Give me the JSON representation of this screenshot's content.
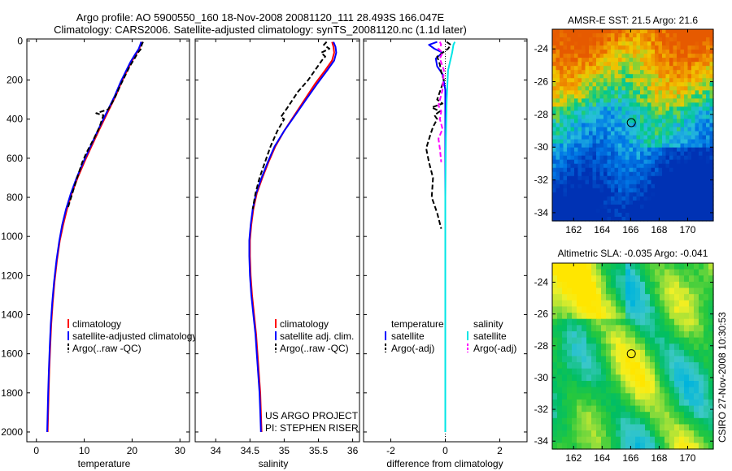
{
  "header": {
    "title_line1": "Argo profile: AO 5900550_160 18-Nov-2008 20081120_111 28.493S 166.047E",
    "title_line2": "Climatology: CARS2006. Satellite-adjusted climatology: synTS_20081120.nc (1.1d later)"
  },
  "credit": {
    "line1": "US ARGO PROJECT",
    "line2": "PI: STEPHEN RISER"
  },
  "side_stamp": "CSIRO 27-Nov-2008 10:30:53",
  "colors": {
    "red": "#ff0000",
    "blue": "#0000ff",
    "black": "#000000",
    "cyan": "#00e5e5",
    "magenta": "#ff00ff"
  },
  "chart_data": [
    {
      "id": "temperature",
      "type": "line",
      "xlabel": "temperature",
      "ylabel": "",
      "xlim": [
        -2,
        32
      ],
      "ylim": [
        2050,
        -10
      ],
      "xticks": [
        0,
        10,
        20,
        30
      ],
      "yticks": [
        0,
        200,
        400,
        600,
        800,
        1000,
        1200,
        1400,
        1600,
        1800,
        2000
      ],
      "legend": [
        "climatology",
        "satellite-adjusted climatology",
        "Argo(..raw -QC)"
      ],
      "series": [
        {
          "name": "climatology",
          "color": "#ff0000",
          "style": "solid",
          "points": [
            [
              22.0,
              5
            ],
            [
              21.8,
              20
            ],
            [
              21.5,
              40
            ],
            [
              20.8,
              70
            ],
            [
              19.8,
              110
            ],
            [
              18.8,
              160
            ],
            [
              17.8,
              210
            ],
            [
              16.6,
              280
            ],
            [
              15.0,
              360
            ],
            [
              13.2,
              450
            ],
            [
              11.5,
              540
            ],
            [
              10.0,
              620
            ],
            [
              8.6,
              700
            ],
            [
              7.4,
              780
            ],
            [
              6.4,
              860
            ],
            [
              5.6,
              940
            ],
            [
              4.9,
              1020
            ],
            [
              4.3,
              1120
            ],
            [
              3.8,
              1230
            ],
            [
              3.4,
              1340
            ],
            [
              3.1,
              1450
            ],
            [
              2.9,
              1560
            ],
            [
              2.7,
              1680
            ],
            [
              2.55,
              1800
            ],
            [
              2.45,
              1900
            ],
            [
              2.35,
              2000
            ]
          ]
        },
        {
          "name": "satellite-adjusted climatology",
          "color": "#0000ff",
          "style": "solid",
          "points": [
            [
              21.9,
              5
            ],
            [
              21.7,
              20
            ],
            [
              21.4,
              40
            ],
            [
              20.6,
              70
            ],
            [
              19.6,
              110
            ],
            [
              18.6,
              160
            ],
            [
              17.6,
              210
            ],
            [
              16.4,
              280
            ],
            [
              14.8,
              360
            ],
            [
              13.0,
              450
            ],
            [
              11.3,
              540
            ],
            [
              9.8,
              620
            ],
            [
              8.4,
              700
            ],
            [
              7.2,
              780
            ],
            [
              6.2,
              860
            ],
            [
              5.4,
              940
            ],
            [
              4.8,
              1020
            ],
            [
              4.2,
              1120
            ],
            [
              3.7,
              1230
            ],
            [
              3.3,
              1340
            ],
            [
              3.0,
              1450
            ],
            [
              2.8,
              1560
            ],
            [
              2.6,
              1680
            ],
            [
              2.45,
              1800
            ],
            [
              2.35,
              1900
            ],
            [
              2.25,
              2000
            ]
          ]
        },
        {
          "name": "Argo(..raw -QC)",
          "color": "#000000",
          "style": "dash",
          "points": [
            [
              22.3,
              5
            ],
            [
              22.0,
              20
            ],
            [
              21.9,
              40
            ],
            [
              21.2,
              60
            ],
            [
              20.5,
              90
            ],
            [
              19.5,
              130
            ],
            [
              18.5,
              180
            ],
            [
              17.5,
              230
            ],
            [
              16.2,
              300
            ],
            [
              15.0,
              350
            ],
            [
              12.5,
              370
            ],
            [
              14.0,
              380
            ],
            [
              13.2,
              440
            ],
            [
              12.0,
              500
            ],
            [
              10.5,
              570
            ],
            [
              9.6,
              620
            ],
            [
              8.5,
              700
            ],
            [
              7.5,
              780
            ],
            [
              6.5,
              860
            ]
          ]
        }
      ]
    },
    {
      "id": "salinity",
      "type": "line",
      "xlabel": "salinity",
      "ylabel": "",
      "xlim": [
        33.7,
        36.1
      ],
      "ylim": [
        2050,
        -10
      ],
      "xticks": [
        34,
        34.5,
        35,
        35.5,
        36
      ],
      "yticks": [
        0,
        200,
        400,
        600,
        800,
        1000,
        1200,
        1400,
        1600,
        1800,
        2000
      ],
      "legend": [
        "climatology",
        "satellite adj. clim.",
        "Argo(..raw -QC)"
      ],
      "series": [
        {
          "name": "climatology",
          "color": "#ff0000",
          "style": "solid",
          "points": [
            [
              35.7,
              5
            ],
            [
              35.72,
              30
            ],
            [
              35.73,
              60
            ],
            [
              35.7,
              100
            ],
            [
              35.6,
              150
            ],
            [
              35.45,
              220
            ],
            [
              35.3,
              300
            ],
            [
              35.15,
              380
            ],
            [
              35.0,
              460
            ],
            [
              34.87,
              540
            ],
            [
              34.77,
              620
            ],
            [
              34.68,
              700
            ],
            [
              34.6,
              780
            ],
            [
              34.55,
              860
            ],
            [
              34.52,
              940
            ],
            [
              34.5,
              1020
            ],
            [
              34.5,
              1100
            ],
            [
              34.51,
              1200
            ],
            [
              34.53,
              1300
            ],
            [
              34.56,
              1400
            ],
            [
              34.59,
              1500
            ],
            [
              34.61,
              1600
            ],
            [
              34.63,
              1700
            ],
            [
              34.65,
              1800
            ],
            [
              34.66,
              1900
            ],
            [
              34.67,
              2000
            ]
          ]
        },
        {
          "name": "satellite adj. clim.",
          "color": "#0000ff",
          "style": "solid",
          "points": [
            [
              35.72,
              5
            ],
            [
              35.75,
              30
            ],
            [
              35.76,
              60
            ],
            [
              35.73,
              100
            ],
            [
              35.63,
              150
            ],
            [
              35.48,
              220
            ],
            [
              35.32,
              300
            ],
            [
              35.16,
              380
            ],
            [
              35.0,
              460
            ],
            [
              34.86,
              540
            ],
            [
              34.76,
              620
            ],
            [
              34.67,
              700
            ],
            [
              34.59,
              780
            ],
            [
              34.54,
              860
            ],
            [
              34.51,
              940
            ],
            [
              34.49,
              1020
            ],
            [
              34.49,
              1100
            ],
            [
              34.5,
              1200
            ],
            [
              34.52,
              1300
            ],
            [
              34.55,
              1400
            ],
            [
              34.58,
              1500
            ],
            [
              34.6,
              1600
            ],
            [
              34.62,
              1700
            ],
            [
              34.64,
              1800
            ],
            [
              34.65,
              1900
            ],
            [
              34.66,
              2000
            ]
          ]
        },
        {
          "name": "Argo(..raw -QC)",
          "color": "#000000",
          "style": "dash",
          "points": [
            [
              35.62,
              5
            ],
            [
              35.58,
              20
            ],
            [
              35.66,
              40
            ],
            [
              35.54,
              60
            ],
            [
              35.6,
              80
            ],
            [
              35.55,
              100
            ],
            [
              35.45,
              150
            ],
            [
              35.35,
              200
            ],
            [
              35.2,
              260
            ],
            [
              35.05,
              340
            ],
            [
              34.95,
              390
            ],
            [
              35.0,
              400
            ],
            [
              34.9,
              460
            ],
            [
              34.8,
              540
            ],
            [
              34.72,
              620
            ],
            [
              34.64,
              700
            ],
            [
              34.58,
              780
            ],
            [
              34.54,
              860
            ]
          ]
        }
      ]
    },
    {
      "id": "difference",
      "type": "line",
      "xlabel": "difference from climatology",
      "ylabel": "",
      "xlim": [
        -3,
        3
      ],
      "ylim": [
        2050,
        -10
      ],
      "xticks": [
        -2,
        0,
        2
      ],
      "yticks": [
        0,
        200,
        400,
        600,
        800,
        1000,
        1200,
        1400,
        1600,
        1800,
        2000
      ],
      "legend": [
        "temperature",
        "satellite",
        "Argo(-adj)",
        "salinity",
        "satellite",
        "Argo(-adj)"
      ],
      "series": [
        {
          "name": "temperature satellite",
          "color": "#0000ff",
          "style": "solid",
          "points": [
            [
              -0.3,
              5
            ],
            [
              -0.6,
              20
            ],
            [
              -0.4,
              40
            ],
            [
              -0.1,
              60
            ],
            [
              -0.35,
              90
            ],
            [
              -0.3,
              130
            ],
            [
              -0.1,
              170
            ],
            [
              0.0,
              250
            ],
            [
              0.0,
              400
            ],
            [
              0.0,
              600
            ],
            [
              0.0,
              1000
            ],
            [
              0.0,
              1500
            ]
          ]
        },
        {
          "name": "temperature Argo(-adj)",
          "color": "#000000",
          "style": "dash",
          "points": [
            [
              0.05,
              5
            ],
            [
              0.2,
              20
            ],
            [
              0.1,
              40
            ],
            [
              -0.3,
              80
            ],
            [
              -0.2,
              120
            ],
            [
              -0.15,
              160
            ],
            [
              -0.05,
              200
            ],
            [
              -0.3,
              300
            ],
            [
              -0.1,
              320
            ],
            [
              -0.5,
              340
            ],
            [
              -0.2,
              360
            ],
            [
              -0.4,
              380
            ],
            [
              -0.3,
              400
            ],
            [
              -0.45,
              440
            ],
            [
              -0.55,
              480
            ],
            [
              -0.7,
              550
            ],
            [
              -0.6,
              620
            ],
            [
              -0.45,
              700
            ],
            [
              -0.5,
              800
            ],
            [
              -0.3,
              880
            ],
            [
              -0.15,
              960
            ]
          ]
        },
        {
          "name": "salinity satellite",
          "color": "#00e5e5",
          "style": "solid",
          "points": [
            [
              0.35,
              5
            ],
            [
              0.3,
              20
            ],
            [
              0.25,
              60
            ],
            [
              0.1,
              150
            ],
            [
              0.05,
              300
            ],
            [
              0.02,
              500
            ],
            [
              0.0,
              800
            ],
            [
              0.0,
              1200
            ],
            [
              0.0,
              1600
            ],
            [
              0.0,
              2000
            ]
          ]
        },
        {
          "name": "salinity Argo(-adj)",
          "color": "#ff00ff",
          "style": "dash",
          "points": [
            [
              -0.2,
              5
            ],
            [
              -0.15,
              20
            ],
            [
              -0.25,
              40
            ],
            [
              -0.1,
              60
            ],
            [
              -0.2,
              90
            ],
            [
              -0.05,
              150
            ],
            [
              -0.1,
              250
            ],
            [
              -0.25,
              330
            ],
            [
              -0.15,
              360
            ],
            [
              -0.2,
              400
            ],
            [
              -0.1,
              450
            ],
            [
              -0.25,
              500
            ],
            [
              -0.2,
              550
            ],
            [
              -0.15,
              620
            ]
          ]
        }
      ]
    },
    {
      "id": "sst_map",
      "type": "heatmap",
      "title": "AMSR-E SST: 21.5 Argo: 21.6",
      "xlim": [
        160.5,
        171.8
      ],
      "ylim": [
        -34.5,
        -22.8
      ],
      "xticks": [
        162,
        164,
        166,
        168,
        170
      ],
      "yticks": [
        -24,
        -26,
        -28,
        -30,
        -32,
        -34
      ],
      "marker": [
        166.05,
        -28.5
      ]
    },
    {
      "id": "sla_map",
      "type": "heatmap",
      "title": "Altimetric SLA: -0.035 Argo: -0.041",
      "xlim": [
        160.5,
        171.8
      ],
      "ylim": [
        -34.5,
        -22.8
      ],
      "xticks": [
        162,
        164,
        166,
        168,
        170
      ],
      "yticks": [
        -24,
        -26,
        -28,
        -30,
        -32,
        -34
      ],
      "marker": [
        166.05,
        -28.5
      ]
    }
  ]
}
